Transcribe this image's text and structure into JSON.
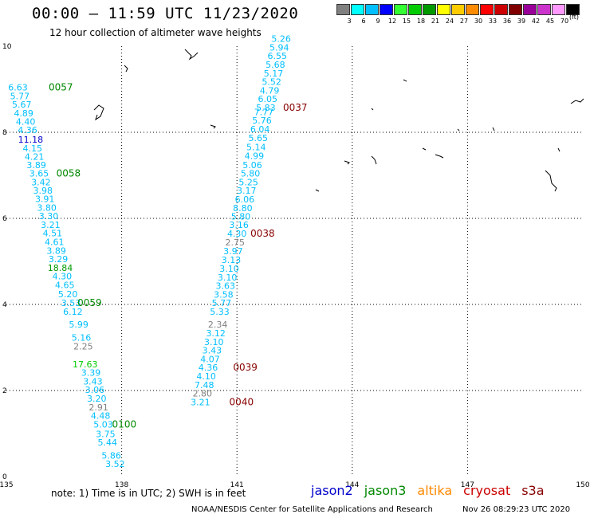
{
  "header": {
    "title": "00:00 – 11:59 UTC 11/23/2020",
    "subtitle": "12 hour collection of altimeter wave heights"
  },
  "legend": {
    "unit": "(ft)",
    "bins": [
      {
        "label": "3",
        "color": "#808080"
      },
      {
        "label": "6",
        "color": "#00ffff"
      },
      {
        "label": "9",
        "color": "#00bfff"
      },
      {
        "label": "12",
        "color": "#0000ff"
      },
      {
        "label": "15",
        "color": "#33ff33"
      },
      {
        "label": "18",
        "color": "#00cc00"
      },
      {
        "label": "21",
        "color": "#009900"
      },
      {
        "label": "24",
        "color": "#ffff00"
      },
      {
        "label": "27",
        "color": "#ffcc00"
      },
      {
        "label": "30",
        "color": "#ff8c00"
      },
      {
        "label": "33",
        "color": "#ff0000"
      },
      {
        "label": "36",
        "color": "#cc0000"
      },
      {
        "label": "39",
        "color": "#800000"
      },
      {
        "label": "42",
        "color": "#990099"
      },
      {
        "label": "45",
        "color": "#cc33cc"
      },
      {
        "label": "70",
        "color": "#ff99ff"
      },
      {
        "label": "",
        "color": "#000000"
      }
    ]
  },
  "footer": {
    "note": "note:  1) Time is in UTC;  2) SWH is in feet",
    "credit": "NOAA/NESDIS Center for Satellite Applications and Research",
    "stamp": "Nov 26 08:29:23 UTC 2020",
    "satellites": [
      {
        "name": "jason2",
        "color": "#0000cc"
      },
      {
        "name": "jason3",
        "color": "#008800"
      },
      {
        "name": "altika",
        "color": "#ff8800"
      },
      {
        "name": "cryosat",
        "color": "#cc0000"
      },
      {
        "name": "s3a",
        "color": "#880000"
      }
    ]
  },
  "chart_data": {
    "type": "scatter",
    "title": "00:00 – 11:59 UTC 11/23/2020",
    "subtitle": "12 hour collection of altimeter wave heights",
    "xlabel": "",
    "ylabel": "",
    "xlim": [
      135,
      150
    ],
    "ylim": [
      0,
      10
    ],
    "xticks": [
      135,
      138,
      141,
      144,
      147,
      150
    ],
    "yticks": [
      0,
      2,
      4,
      6,
      8,
      10
    ],
    "grid": true,
    "series": [
      {
        "points": [
          {
            "x": 135.3,
            "y": 8.97,
            "v": "6.63",
            "c": "#00bfff"
          },
          {
            "x": 135.35,
            "y": 8.77,
            "v": "5.77",
            "c": "#00bfff"
          },
          {
            "x": 135.4,
            "y": 8.57,
            "v": "5.67",
            "c": "#00bfff"
          },
          {
            "x": 135.45,
            "y": 8.37,
            "v": "4.89",
            "c": "#00bfff"
          },
          {
            "x": 135.5,
            "y": 8.18,
            "v": "4.40",
            "c": "#00bfff"
          },
          {
            "x": 135.55,
            "y": 7.98,
            "v": "4.36",
            "c": "#00bfff"
          },
          {
            "x": 135.63,
            "y": 7.76,
            "v": "11.18",
            "c": "#0000cc"
          },
          {
            "x": 135.68,
            "y": 7.56,
            "v": "4.15",
            "c": "#00bfff"
          },
          {
            "x": 135.73,
            "y": 7.36,
            "v": "4.21",
            "c": "#00bfff"
          },
          {
            "x": 135.78,
            "y": 7.17,
            "v": "3.89",
            "c": "#00bfff"
          },
          {
            "x": 135.85,
            "y": 6.97,
            "v": "3.65",
            "c": "#00bfff"
          },
          {
            "x": 135.9,
            "y": 6.77,
            "v": "3.42",
            "c": "#00bfff"
          },
          {
            "x": 135.95,
            "y": 6.57,
            "v": "3.98",
            "c": "#00bfff"
          },
          {
            "x": 136.0,
            "y": 6.38,
            "v": "3.91",
            "c": "#00bfff"
          },
          {
            "x": 136.05,
            "y": 6.18,
            "v": "3.80",
            "c": "#00bfff"
          },
          {
            "x": 136.1,
            "y": 5.98,
            "v": "3.30",
            "c": "#00bfff"
          },
          {
            "x": 136.15,
            "y": 5.78,
            "v": "3.21",
            "c": "#00bfff"
          },
          {
            "x": 136.2,
            "y": 5.58,
            "v": "4.51",
            "c": "#00bfff"
          },
          {
            "x": 136.25,
            "y": 5.38,
            "v": "4.61",
            "c": "#00bfff"
          },
          {
            "x": 136.3,
            "y": 5.18,
            "v": "3.89",
            "c": "#00bfff"
          },
          {
            "x": 136.35,
            "y": 4.98,
            "v": "3.29",
            "c": "#00bfff"
          },
          {
            "x": 136.4,
            "y": 4.78,
            "v": "18.84",
            "c": "#009900"
          },
          {
            "x": 136.45,
            "y": 4.58,
            "v": "4.30",
            "c": "#00bfff"
          },
          {
            "x": 136.52,
            "y": 4.38,
            "v": "4.65",
            "c": "#00bfff"
          },
          {
            "x": 136.6,
            "y": 4.17,
            "v": "5.20",
            "c": "#00bfff"
          },
          {
            "x": 136.68,
            "y": 3.96,
            "v": "3.53",
            "c": "#00bfff"
          },
          {
            "x": 136.73,
            "y": 3.76,
            "v": "6.12",
            "c": "#00bfff"
          },
          {
            "x": 136.88,
            "y": 3.46,
            "v": "5.99",
            "c": "#00bfff"
          },
          {
            "x": 136.95,
            "y": 3.16,
            "v": "5.16",
            "c": "#00bfff"
          },
          {
            "x": 137.0,
            "y": 2.95,
            "v": "2.25",
            "c": "#808080"
          },
          {
            "x": 137.05,
            "y": 2.54,
            "v": "17.63",
            "c": "#00cc00"
          },
          {
            "x": 137.2,
            "y": 2.34,
            "v": "3.39",
            "c": "#00bfff"
          },
          {
            "x": 137.25,
            "y": 2.14,
            "v": "3.43",
            "c": "#00bfff"
          },
          {
            "x": 137.3,
            "y": 1.94,
            "v": "3.06",
            "c": "#00bfff"
          },
          {
            "x": 137.35,
            "y": 1.74,
            "v": "3.20",
            "c": "#00bfff"
          },
          {
            "x": 137.4,
            "y": 1.54,
            "v": "2.91",
            "c": "#808080"
          },
          {
            "x": 137.45,
            "y": 1.34,
            "v": "4.48",
            "c": "#00bfff"
          },
          {
            "x": 137.52,
            "y": 1.14,
            "v": "5.03",
            "c": "#00bfff"
          },
          {
            "x": 137.58,
            "y": 0.92,
            "v": "3.75",
            "c": "#00bfff"
          },
          {
            "x": 137.63,
            "y": 0.72,
            "v": "5.44",
            "c": "#00bfff"
          },
          {
            "x": 137.73,
            "y": 0.42,
            "v": "5.86",
            "c": "#00bfff"
          },
          {
            "x": 137.83,
            "y": 0.22,
            "v": "3.52",
            "c": "#00bfff"
          },
          {
            "x": 142.15,
            "y": 10.1,
            "v": "5.26",
            "c": "#00bfff"
          },
          {
            "x": 142.1,
            "y": 9.9,
            "v": "5.94",
            "c": "#00bfff"
          },
          {
            "x": 142.05,
            "y": 9.7,
            "v": "6.55",
            "c": "#00bfff"
          },
          {
            "x": 142.0,
            "y": 9.5,
            "v": "5.68",
            "c": "#00bfff"
          },
          {
            "x": 141.95,
            "y": 9.3,
            "v": "5.17",
            "c": "#00bfff"
          },
          {
            "x": 141.9,
            "y": 9.1,
            "v": "5.52",
            "c": "#00bfff"
          },
          {
            "x": 141.85,
            "y": 8.9,
            "v": "4.79",
            "c": "#00bfff"
          },
          {
            "x": 141.8,
            "y": 8.7,
            "v": "6.05",
            "c": "#00bfff"
          },
          {
            "x": 141.75,
            "y": 8.5,
            "v": "5.83",
            "c": "#00bfff"
          },
          {
            "x": 141.7,
            "y": 8.4,
            "v": "7.77",
            "c": "#00bfff"
          },
          {
            "x": 141.65,
            "y": 8.2,
            "v": "5.76",
            "c": "#00bfff"
          },
          {
            "x": 141.6,
            "y": 8.0,
            "v": "6.04",
            "c": "#00bfff"
          },
          {
            "x": 141.55,
            "y": 7.8,
            "v": "5.65",
            "c": "#00bfff"
          },
          {
            "x": 141.5,
            "y": 7.58,
            "v": "5.14",
            "c": "#00bfff"
          },
          {
            "x": 141.45,
            "y": 7.38,
            "v": "4.99",
            "c": "#00bfff"
          },
          {
            "x": 141.4,
            "y": 7.17,
            "v": "5.06",
            "c": "#00bfff"
          },
          {
            "x": 141.35,
            "y": 6.97,
            "v": "5.80",
            "c": "#00bfff"
          },
          {
            "x": 141.3,
            "y": 6.77,
            "v": "5.25",
            "c": "#00bfff"
          },
          {
            "x": 141.25,
            "y": 6.57,
            "v": "3.17",
            "c": "#00bfff"
          },
          {
            "x": 141.2,
            "y": 6.37,
            "v": "6.06",
            "c": "#00bfff"
          },
          {
            "x": 141.15,
            "y": 6.17,
            "v": "8.80",
            "c": "#00bfff"
          },
          {
            "x": 141.1,
            "y": 5.97,
            "v": "5.80",
            "c": "#00bfff"
          },
          {
            "x": 141.05,
            "y": 5.78,
            "v": "3.16",
            "c": "#00bfff"
          },
          {
            "x": 141.0,
            "y": 5.57,
            "v": "4.30",
            "c": "#00bfff"
          },
          {
            "x": 140.95,
            "y": 5.37,
            "v": "2.75",
            "c": "#808080"
          },
          {
            "x": 140.9,
            "y": 5.17,
            "v": "3.97",
            "c": "#00bfff"
          },
          {
            "x": 140.85,
            "y": 4.96,
            "v": "3.13",
            "c": "#00bfff"
          },
          {
            "x": 140.8,
            "y": 4.76,
            "v": "3.10",
            "c": "#00bfff"
          },
          {
            "x": 140.75,
            "y": 4.56,
            "v": "3.10",
            "c": "#00bfff"
          },
          {
            "x": 140.7,
            "y": 4.36,
            "v": "3.63",
            "c": "#00bfff"
          },
          {
            "x": 140.65,
            "y": 4.16,
            "v": "3.58",
            "c": "#00bfff"
          },
          {
            "x": 140.6,
            "y": 3.96,
            "v": "5.77",
            "c": "#00bfff"
          },
          {
            "x": 140.55,
            "y": 3.76,
            "v": "5.33",
            "c": "#00bfff"
          },
          {
            "x": 140.5,
            "y": 3.46,
            "v": "2.34",
            "c": "#808080"
          },
          {
            "x": 140.45,
            "y": 3.26,
            "v": "3.12",
            "c": "#00bfff"
          },
          {
            "x": 140.4,
            "y": 3.06,
            "v": "3.10",
            "c": "#00bfff"
          },
          {
            "x": 140.35,
            "y": 2.86,
            "v": "3.43",
            "c": "#00bfff"
          },
          {
            "x": 140.3,
            "y": 2.66,
            "v": "4.07",
            "c": "#00bfff"
          },
          {
            "x": 140.25,
            "y": 2.46,
            "v": "4.36",
            "c": "#00bfff"
          },
          {
            "x": 140.2,
            "y": 2.26,
            "v": "4.10",
            "c": "#00bfff"
          },
          {
            "x": 140.15,
            "y": 2.06,
            "v": "7.48",
            "c": "#00bfff"
          },
          {
            "x": 140.1,
            "y": 1.86,
            "v": "2.80",
            "c": "#808080"
          },
          {
            "x": 140.05,
            "y": 1.66,
            "v": "3.21",
            "c": "#00bfff"
          }
        ]
      }
    ],
    "annotations": [
      {
        "text": "0057",
        "x": 136.1,
        "y": 8.97,
        "color": "#008800"
      },
      {
        "text": "0058",
        "x": 136.3,
        "y": 6.97,
        "color": "#008800"
      },
      {
        "text": "0059",
        "x": 136.85,
        "y": 3.96,
        "color": "#008800"
      },
      {
        "text": "0100",
        "x": 137.75,
        "y": 1.14,
        "color": "#008800"
      },
      {
        "text": "0037",
        "x": 142.2,
        "y": 8.5,
        "color": "#880000"
      },
      {
        "text": "0038",
        "x": 141.35,
        "y": 5.57,
        "color": "#880000"
      },
      {
        "text": "0039",
        "x": 140.9,
        "y": 2.46,
        "color": "#880000"
      },
      {
        "text": "0040",
        "x": 140.8,
        "y": 1.66,
        "color": "#880000"
      }
    ]
  }
}
